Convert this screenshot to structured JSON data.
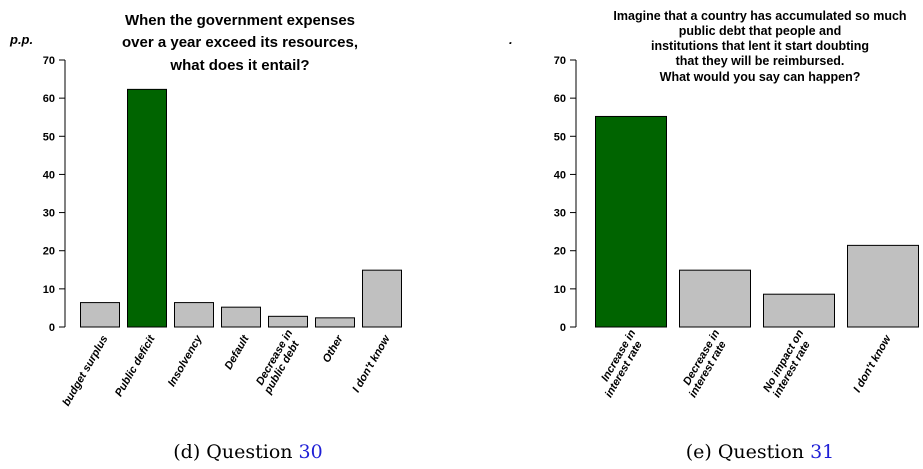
{
  "chart_data": [
    {
      "type": "bar",
      "title": [
        "When the government expenses",
        "over a year exceed its resources,",
        "what does it entail?"
      ],
      "ylabel": "p.p.",
      "ylim": [
        0,
        70
      ],
      "yticks": [
        0,
        10,
        20,
        30,
        40,
        50,
        60,
        70
      ],
      "categories": [
        [
          "budget surplus"
        ],
        [
          "Public deficit"
        ],
        [
          "Insolvency"
        ],
        [
          "Default"
        ],
        [
          "Decrease in",
          "public debt"
        ],
        [
          "Other"
        ],
        [
          "I don't know"
        ]
      ],
      "values": [
        6.4,
        62.3,
        6.4,
        5.2,
        2.8,
        2.4,
        14.9
      ],
      "colors": [
        "#c0c0c0",
        "#006400",
        "#c0c0c0",
        "#c0c0c0",
        "#c0c0c0",
        "#c0c0c0",
        "#c0c0c0"
      ],
      "caption": {
        "prefix": "(d) Question ",
        "number": "30"
      }
    },
    {
      "type": "bar",
      "title": [
        "Imagine that a country has accumulated so much",
        "public debt that people and",
        "institutions that lent it start doubting",
        "that they will be reimbursed.",
        "What would you say can happen?"
      ],
      "ylabel": ".",
      "ylim": [
        0,
        70
      ],
      "yticks": [
        0,
        10,
        20,
        30,
        40,
        50,
        60,
        70
      ],
      "categories": [
        [
          "Increase in",
          "interest rate"
        ],
        [
          "Decrease in",
          "interest rate"
        ],
        [
          "No impact on",
          "interest rate"
        ],
        [
          "I don't know"
        ]
      ],
      "values": [
        55.2,
        14.9,
        8.6,
        21.4
      ],
      "colors": [
        "#006400",
        "#c0c0c0",
        "#c0c0c0",
        "#c0c0c0"
      ],
      "caption": {
        "prefix": "(e) Question ",
        "number": "31"
      }
    }
  ]
}
